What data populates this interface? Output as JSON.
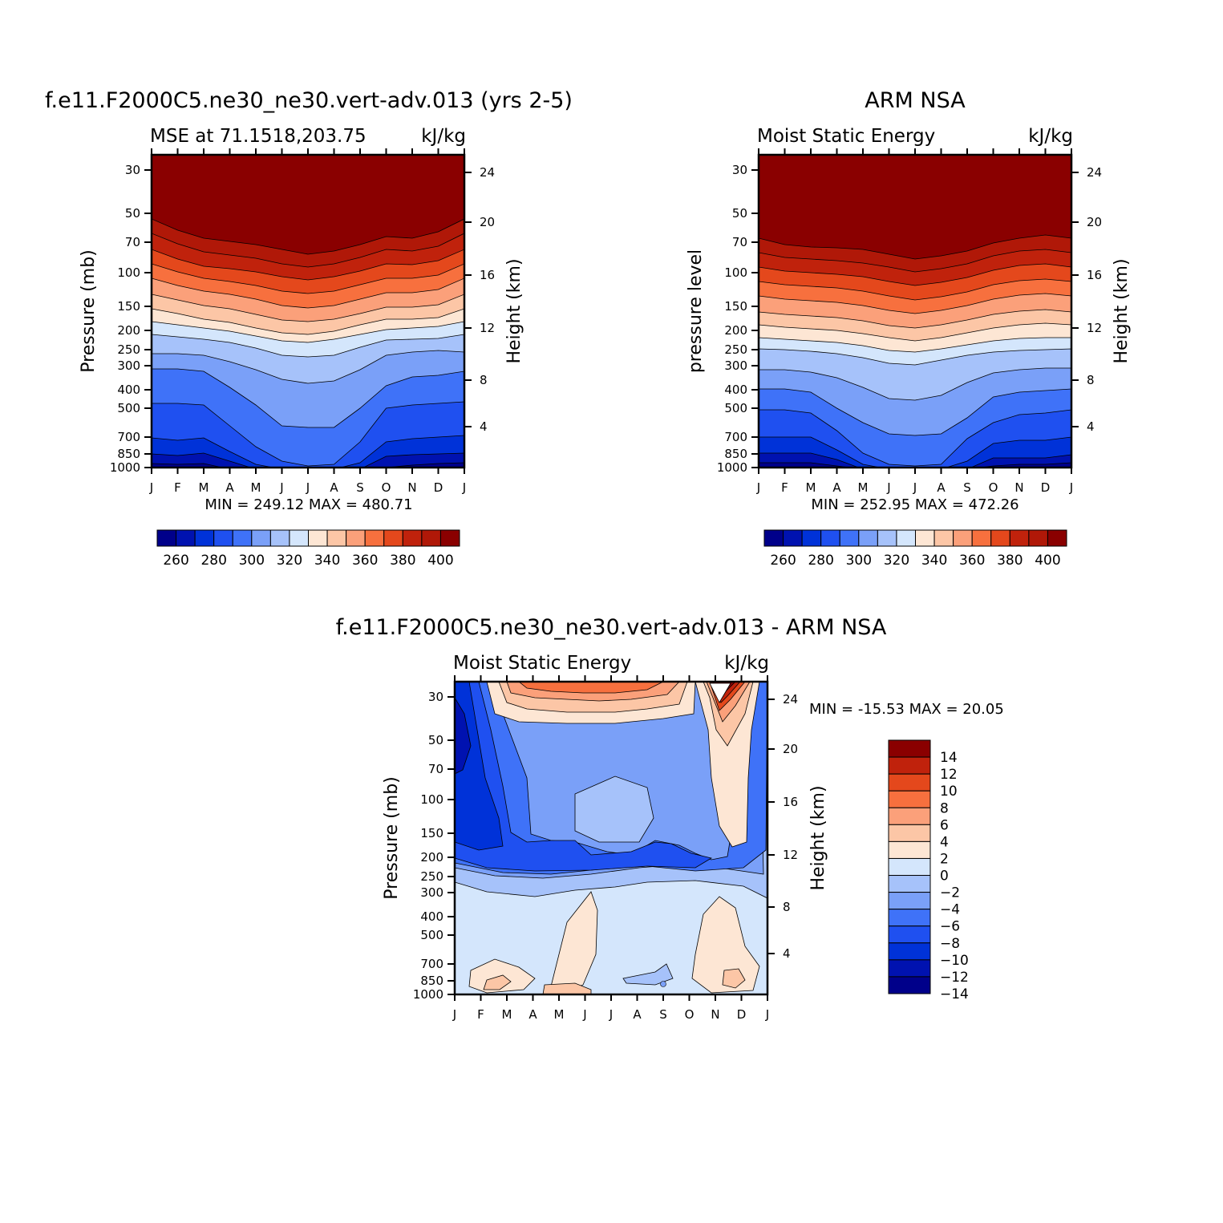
{
  "colors": {
    "mse_levels": [
      "#00008a",
      "#0012b0",
      "#0032d8",
      "#1f50f0",
      "#3f72f8",
      "#7aa0f8",
      "#a6c2fa",
      "#d4e6fc",
      "#fde6d4",
      "#fcc6a6",
      "#fba07a",
      "#f7703e",
      "#e4481c",
      "#c0220c",
      "#b01808",
      "#8a0000"
    ],
    "diff_levels": [
      "#00008a",
      "#0012b0",
      "#0032d8",
      "#1f50f0",
      "#3f72f8",
      "#7aa0f8",
      "#a6c2fa",
      "#d4e6fc",
      "#fde6d4",
      "#fcc6a6",
      "#fba07a",
      "#f7703e",
      "#e4481c",
      "#c0220c",
      "#8a0000"
    ]
  },
  "chart_data": [
    {
      "type": "heatmap",
      "title": "f.e11.F2000C5.ne30_ne30.vert-adv.013 (yrs 2-5)",
      "subtitle_left": "MSE at 71.1518,203.75",
      "subtitle_right": "kJ/kg",
      "ylabel": "Pressure (mb)",
      "y2label": "Height (km)",
      "x_ticks": [
        "J",
        "F",
        "M",
        "A",
        "M",
        "J",
        "J",
        "A",
        "S",
        "O",
        "N",
        "D",
        "J"
      ],
      "y_ticks": [
        "30",
        "50",
        "70",
        "100",
        "150",
        "200",
        "250",
        "300",
        "400",
        "500",
        "700",
        "850",
        "1000"
      ],
      "y2_ticks": [
        "24",
        "20",
        "16",
        "12",
        "8",
        "4"
      ],
      "min_max": "MIN = 249.12 MAX = 480.71",
      "colorbar_labels": [
        "260",
        "280",
        "300",
        "320",
        "340",
        "360",
        "380",
        "400"
      ],
      "ylim": [
        1000,
        30
      ],
      "grid": false
    },
    {
      "type": "heatmap",
      "title": "ARM NSA",
      "subtitle_left": "Moist Static Energy",
      "subtitle_right": "kJ/kg",
      "ylabel": "pressure level",
      "y2label": "Height (km)",
      "x_ticks": [
        "J",
        "F",
        "M",
        "A",
        "M",
        "J",
        "J",
        "A",
        "S",
        "O",
        "N",
        "D",
        "J"
      ],
      "y_ticks": [
        "30",
        "50",
        "70",
        "100",
        "150",
        "200",
        "250",
        "300",
        "400",
        "500",
        "700",
        "850",
        "1000"
      ],
      "y2_ticks": [
        "24",
        "20",
        "16",
        "12",
        "8",
        "4"
      ],
      "min_max": "MIN = 252.95 MAX = 472.26",
      "colorbar_labels": [
        "260",
        "280",
        "300",
        "320",
        "340",
        "360",
        "380",
        "400"
      ],
      "ylim": [
        1000,
        30
      ],
      "grid": false
    },
    {
      "type": "heatmap",
      "title": "f.e11.F2000C5.ne30_ne30.vert-adv.013 - ARM NSA",
      "subtitle_left": "Moist Static Energy",
      "subtitle_right": "kJ/kg",
      "ylabel": "Pressure (mb)",
      "y2label": "Height (km)",
      "x_ticks": [
        "J",
        "F",
        "M",
        "A",
        "M",
        "J",
        "J",
        "A",
        "S",
        "O",
        "N",
        "D",
        "J"
      ],
      "y_ticks": [
        "30",
        "50",
        "70",
        "100",
        "150",
        "200",
        "250",
        "300",
        "400",
        "500",
        "700",
        "850",
        "1000"
      ],
      "y2_ticks": [
        "24",
        "20",
        "16",
        "12",
        "8",
        "4"
      ],
      "min_max": "MIN = -15.53 MAX = 20.05",
      "colorbar_labels": [
        "14",
        "12",
        "10",
        "8",
        "6",
        "4",
        "2",
        "0",
        "-2",
        "-4",
        "-6",
        "-8",
        "-10",
        "-12",
        "-14"
      ],
      "ylim": [
        1000,
        30
      ],
      "grid": false
    }
  ]
}
